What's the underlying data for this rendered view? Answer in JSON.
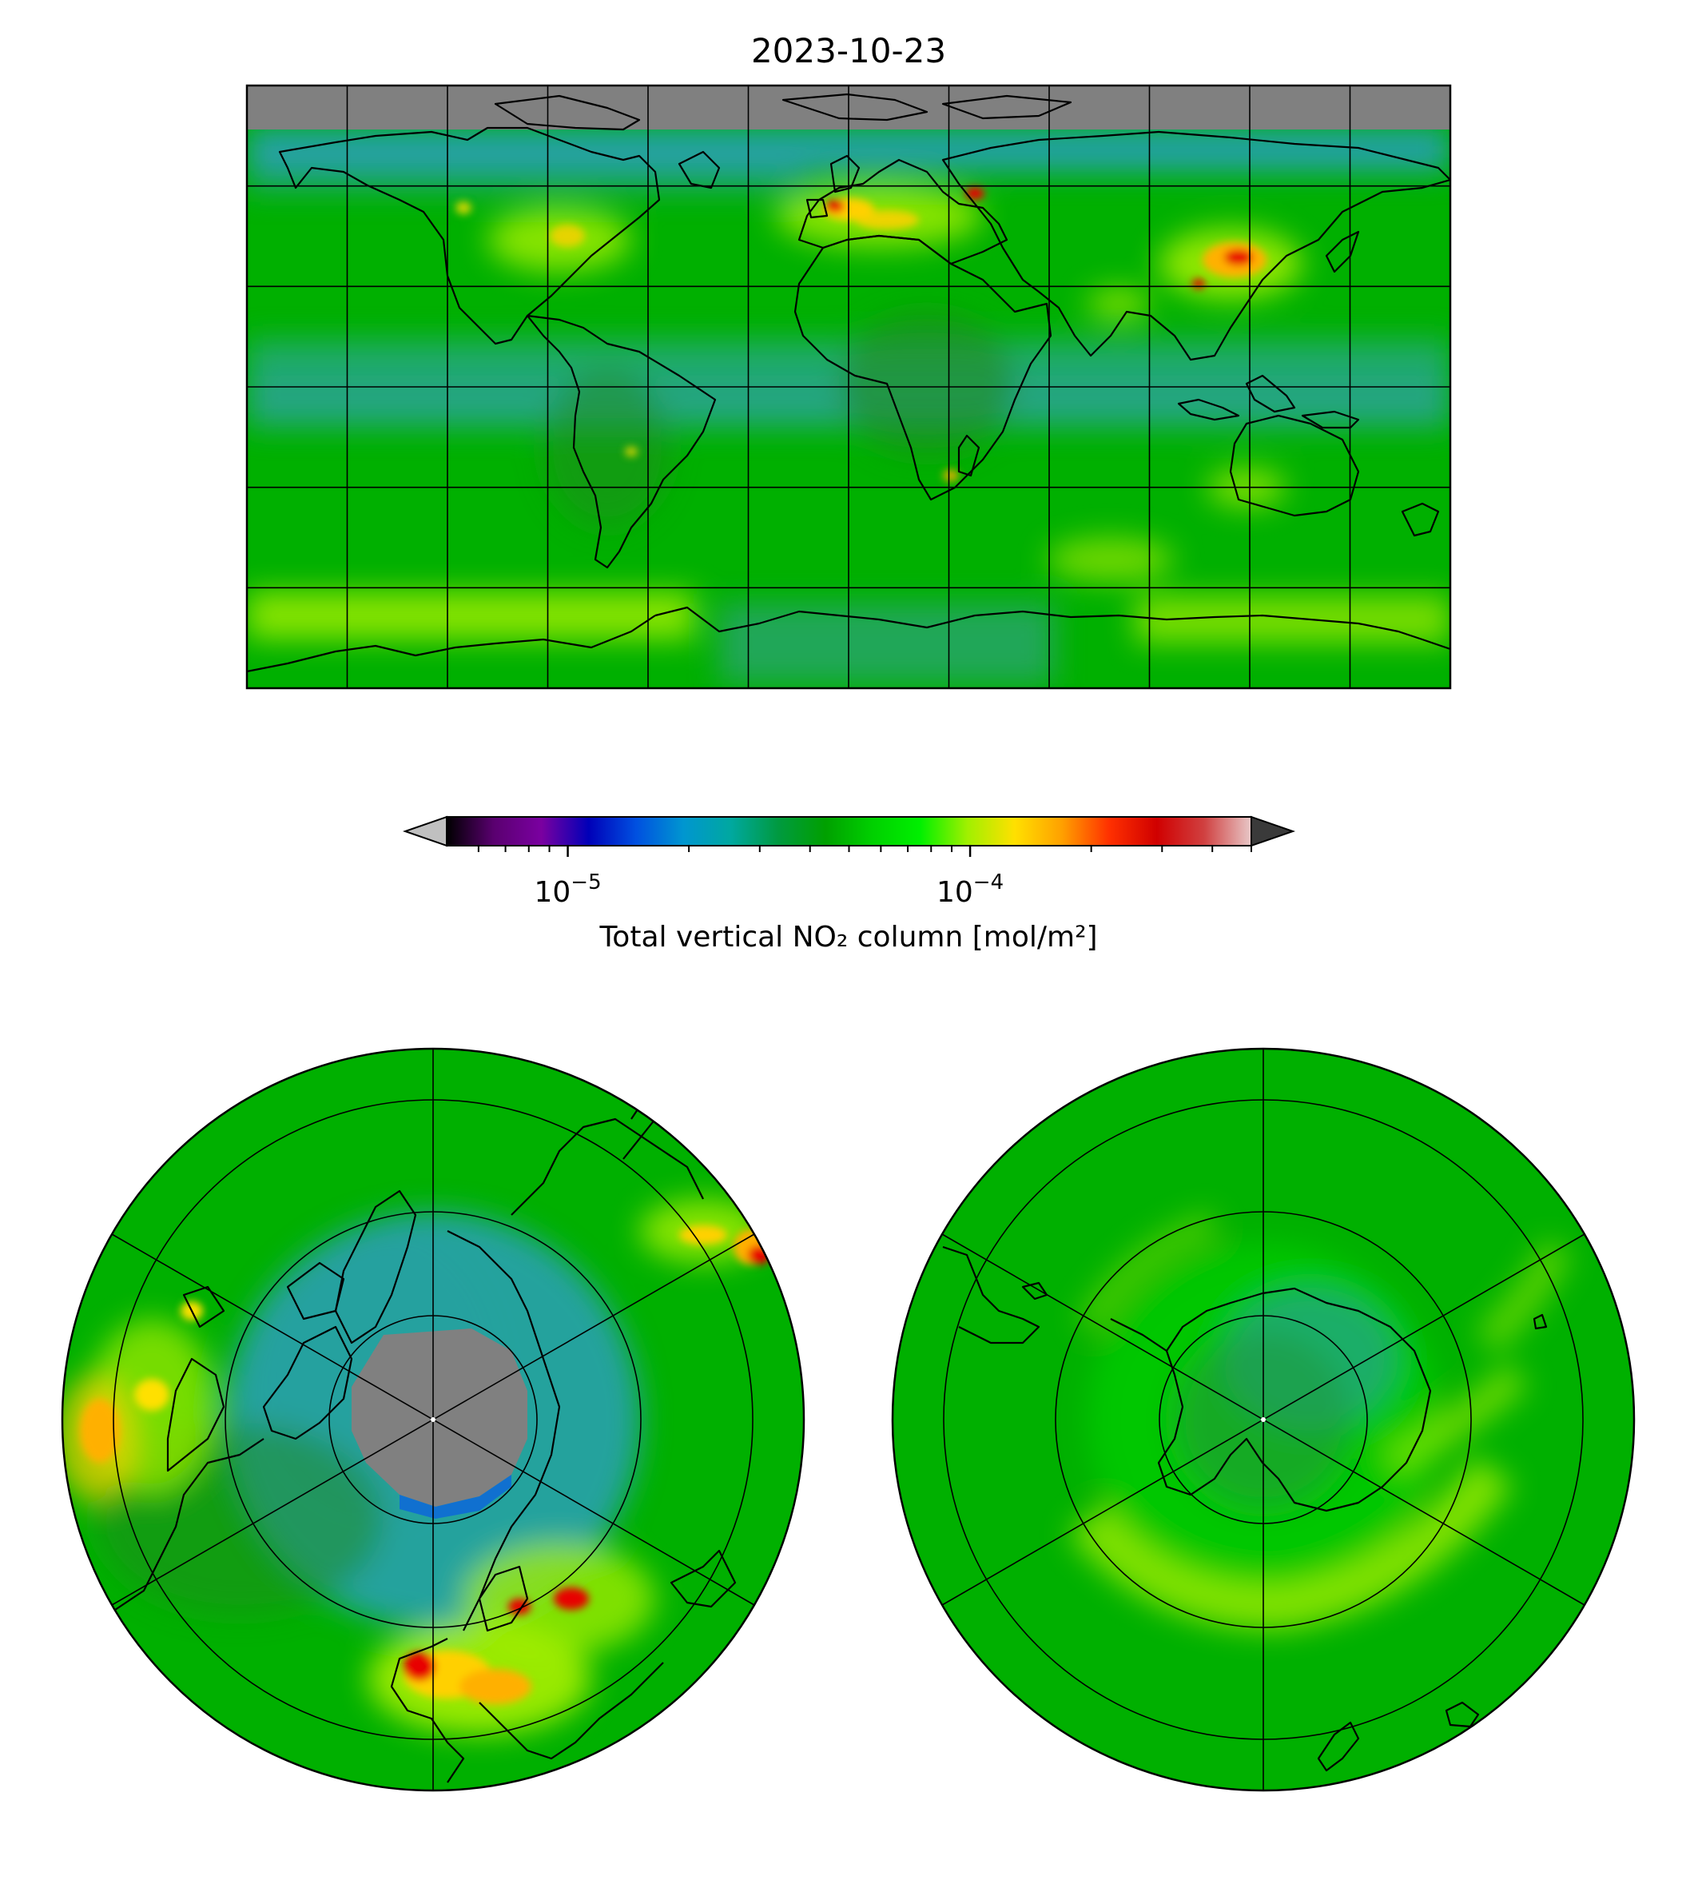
{
  "figure": {
    "title": "2023-10-23"
  },
  "colorbar": {
    "label": "Total vertical NO₂ column [mol/m²]",
    "scale": "log",
    "range": [
      5e-06,
      0.0005
    ],
    "major_ticks": [
      {
        "value": 1e-05,
        "base": "10",
        "exponent": "−5"
      },
      {
        "value": 0.0001,
        "base": "10",
        "exponent": "−4"
      }
    ],
    "extend": "both",
    "under_color": "#c0c0c0",
    "over_color": "#3a3a3a",
    "stops": [
      "#000000",
      "#5a0070",
      "#7a00a0",
      "#0000b8",
      "#0050e0",
      "#0096d0",
      "#00a8a0",
      "#009a40",
      "#00a000",
      "#00d000",
      "#00f000",
      "#a0f000",
      "#ffe000",
      "#ffa000",
      "#ff3000",
      "#d00000",
      "#d04040",
      "#e8c8c8"
    ]
  },
  "maps": {
    "global": {
      "projection": "equirectangular",
      "missing_color": "#808080",
      "gridlines": true
    },
    "north_polar": {
      "projection": "north-polar-stereographic",
      "missing_color": "#808080",
      "gridlines": true
    },
    "south_polar": {
      "projection": "south-polar-stereographic",
      "gridlines": true
    }
  },
  "palette": {
    "background": "#00b000",
    "low_ocean": "#2aa88a",
    "arctic_low": "#2aa0b8",
    "enhanced": "#a8f000",
    "high": "#ffd000",
    "very_high": "#e80000",
    "coast": "#000000"
  }
}
